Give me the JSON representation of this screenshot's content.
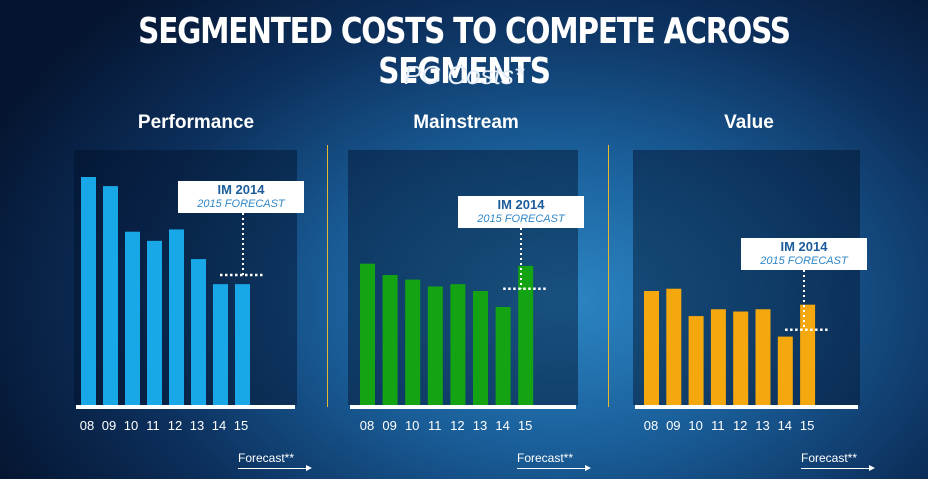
{
  "title": "SEGMENTED COSTS TO COMPETE ACROSS SEGMENTS",
  "subtitle": "PC Costs*",
  "forecast_label": "Forecast**",
  "callout": {
    "line1": "IM 2014",
    "line2": "2015 FORECAST"
  },
  "colors": {
    "performance": "#18a8e8",
    "mainstream": "#13a313",
    "value": "#f5a70e",
    "callout_text": "#1d5d9b",
    "divider": "#e8b730"
  },
  "chart_data": [
    {
      "type": "bar",
      "title": "Performance",
      "categories": [
        "08",
        "09",
        "10",
        "11",
        "12",
        "13",
        "14",
        "15"
      ],
      "values": [
        100,
        96,
        76,
        72,
        77,
        64,
        53,
        53
      ],
      "forecast_value": 57,
      "ylim": [
        0,
        100
      ]
    },
    {
      "type": "bar",
      "title": "Mainstream",
      "categories": [
        "08",
        "09",
        "10",
        "11",
        "12",
        "13",
        "14",
        "15"
      ],
      "values": [
        62,
        57,
        55,
        52,
        53,
        50,
        43,
        61
      ],
      "forecast_value": 51,
      "ylim": [
        0,
        100
      ]
    },
    {
      "type": "bar",
      "title": "Value",
      "categories": [
        "08",
        "09",
        "10",
        "11",
        "12",
        "13",
        "14",
        "15"
      ],
      "values": [
        50,
        51,
        39,
        42,
        41,
        42,
        30,
        44
      ],
      "forecast_value": 33,
      "ylim": [
        0,
        100
      ]
    }
  ]
}
